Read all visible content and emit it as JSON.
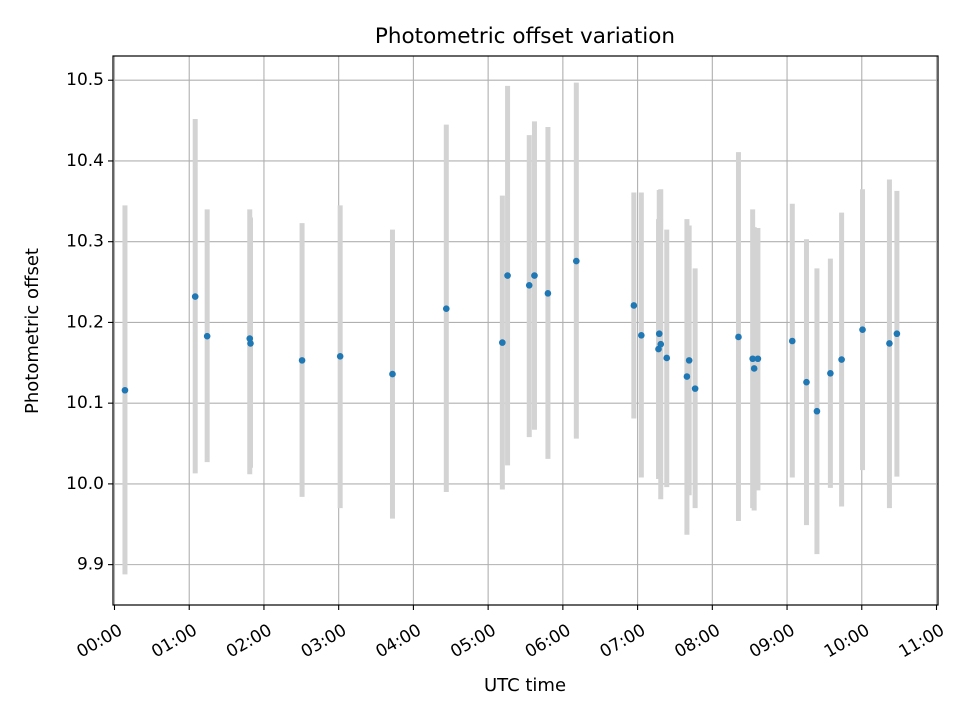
{
  "chart_data": {
    "type": "scatter",
    "title": "Photometric offset variation",
    "xlabel": "UTC time",
    "ylabel": "Photometric offset",
    "xlim": [
      -0.02,
      11.02
    ],
    "ylim": [
      9.85,
      10.53
    ],
    "x_ticks": [
      {
        "value": 0,
        "label": "00:00"
      },
      {
        "value": 1,
        "label": "01:00"
      },
      {
        "value": 2,
        "label": "02:00"
      },
      {
        "value": 3,
        "label": "03:00"
      },
      {
        "value": 4,
        "label": "04:00"
      },
      {
        "value": 5,
        "label": "05:00"
      },
      {
        "value": 6,
        "label": "06:00"
      },
      {
        "value": 7,
        "label": "07:00"
      },
      {
        "value": 8,
        "label": "08:00"
      },
      {
        "value": 9,
        "label": "09:00"
      },
      {
        "value": 10,
        "label": "10:00"
      },
      {
        "value": 11,
        "label": "11:00"
      }
    ],
    "y_ticks": [
      {
        "value": 9.9,
        "label": "9.9"
      },
      {
        "value": 10.0,
        "label": "10.0"
      },
      {
        "value": 10.1,
        "label": "10.1"
      },
      {
        "value": 10.2,
        "label": "10.2"
      },
      {
        "value": 10.3,
        "label": "10.3"
      },
      {
        "value": 10.4,
        "label": "10.4"
      },
      {
        "value": 10.5,
        "label": "10.5"
      }
    ],
    "grid": true,
    "marker_color": "#1f77b4",
    "errorbar_color": "#d3d3d3",
    "x_unit": "hours",
    "points": [
      {
        "x": 0.14,
        "y": 10.116,
        "low": 9.888,
        "high": 10.345
      },
      {
        "x": 1.08,
        "y": 10.232,
        "low": 10.013,
        "high": 10.452
      },
      {
        "x": 1.24,
        "y": 10.183,
        "low": 10.027,
        "high": 10.34
      },
      {
        "x": 1.81,
        "y": 10.18,
        "low": 10.012,
        "high": 10.34
      },
      {
        "x": 1.82,
        "y": 10.174,
        "low": 10.02,
        "high": 10.33
      },
      {
        "x": 2.51,
        "y": 10.153,
        "low": 9.984,
        "high": 10.323
      },
      {
        "x": 3.02,
        "y": 10.158,
        "low": 9.97,
        "high": 10.345
      },
      {
        "x": 3.72,
        "y": 10.136,
        "low": 9.957,
        "high": 10.315
      },
      {
        "x": 4.44,
        "y": 10.217,
        "low": 9.99,
        "high": 10.445
      },
      {
        "x": 5.19,
        "y": 10.175,
        "low": 9.993,
        "high": 10.357
      },
      {
        "x": 5.26,
        "y": 10.258,
        "low": 10.023,
        "high": 10.493
      },
      {
        "x": 5.55,
        "y": 10.246,
        "low": 10.058,
        "high": 10.432
      },
      {
        "x": 5.62,
        "y": 10.258,
        "low": 10.067,
        "high": 10.449
      },
      {
        "x": 5.8,
        "y": 10.236,
        "low": 10.031,
        "high": 10.442
      },
      {
        "x": 6.18,
        "y": 10.276,
        "low": 10.056,
        "high": 10.497
      },
      {
        "x": 6.95,
        "y": 10.221,
        "low": 10.081,
        "high": 10.361
      },
      {
        "x": 7.05,
        "y": 10.184,
        "low": 10.008,
        "high": 10.361
      },
      {
        "x": 7.28,
        "y": 10.167,
        "low": 10.006,
        "high": 10.328
      },
      {
        "x": 7.29,
        "y": 10.186,
        "low": 10.008,
        "high": 10.364
      },
      {
        "x": 7.31,
        "y": 10.173,
        "low": 9.981,
        "high": 10.365
      },
      {
        "x": 7.39,
        "y": 10.156,
        "low": 9.996,
        "high": 10.315
      },
      {
        "x": 7.66,
        "y": 10.133,
        "low": 9.937,
        "high": 10.328
      },
      {
        "x": 7.69,
        "y": 10.153,
        "low": 9.986,
        "high": 10.32
      },
      {
        "x": 7.77,
        "y": 10.118,
        "low": 9.97,
        "high": 10.267
      },
      {
        "x": 8.35,
        "y": 10.182,
        "low": 9.954,
        "high": 10.411
      },
      {
        "x": 8.54,
        "y": 10.155,
        "low": 9.97,
        "high": 10.34
      },
      {
        "x": 8.56,
        "y": 10.143,
        "low": 9.967,
        "high": 10.318
      },
      {
        "x": 8.61,
        "y": 10.155,
        "low": 9.992,
        "high": 10.317
      },
      {
        "x": 9.07,
        "y": 10.177,
        "low": 10.008,
        "high": 10.347
      },
      {
        "x": 9.26,
        "y": 10.126,
        "low": 9.949,
        "high": 10.303
      },
      {
        "x": 9.4,
        "y": 10.09,
        "low": 9.913,
        "high": 10.267
      },
      {
        "x": 9.58,
        "y": 10.137,
        "low": 9.995,
        "high": 10.279
      },
      {
        "x": 9.73,
        "y": 10.154,
        "low": 9.972,
        "high": 10.336
      },
      {
        "x": 10.01,
        "y": 10.191,
        "low": 10.017,
        "high": 10.365
      },
      {
        "x": 10.37,
        "y": 10.174,
        "low": 9.97,
        "high": 10.377
      },
      {
        "x": 10.47,
        "y": 10.186,
        "low": 10.009,
        "high": 10.363
      }
    ]
  }
}
